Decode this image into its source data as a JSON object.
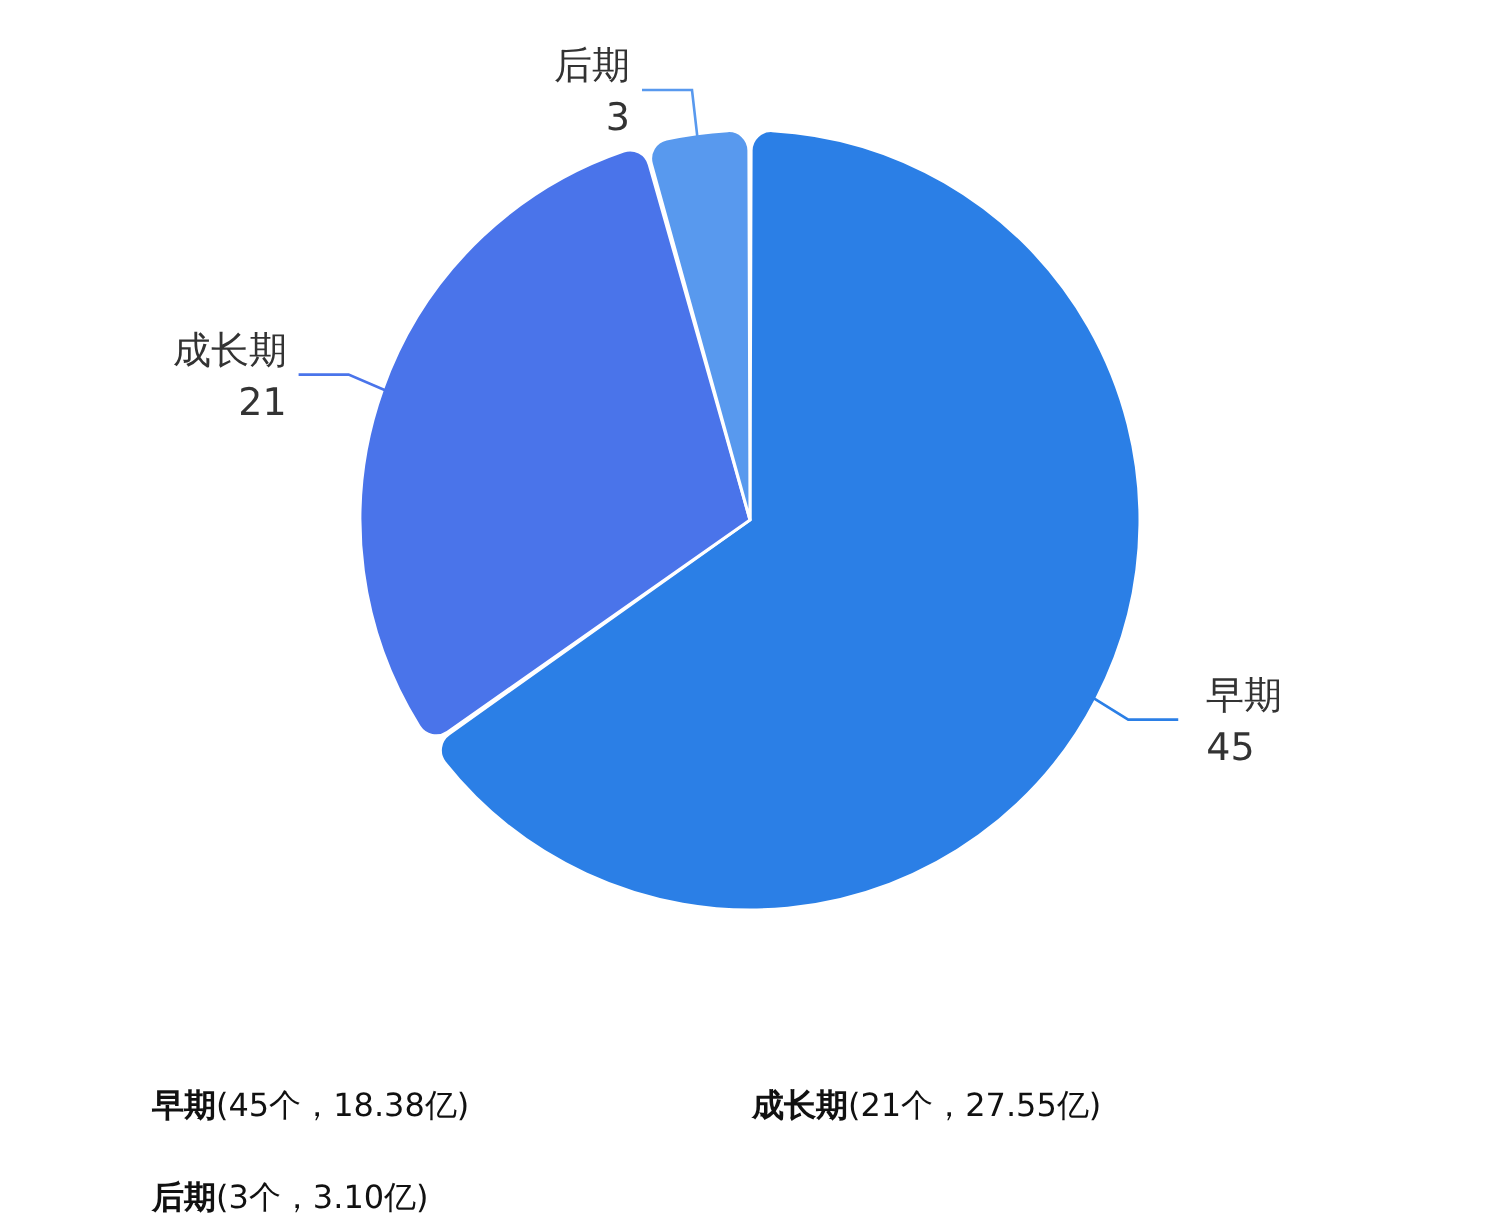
{
  "chart_data": {
    "type": "pie",
    "categories": [
      "早期",
      "成长期",
      "后期"
    ],
    "values": [
      45,
      21,
      3
    ],
    "colors": [
      "#2b7fe6",
      "#4a74ea",
      "#5899ee"
    ],
    "data_labels": true,
    "annotations": [
      "(45个，18.38亿)",
      "(21个，27.55亿)",
      "(3个，3.10亿)"
    ]
  }
}
